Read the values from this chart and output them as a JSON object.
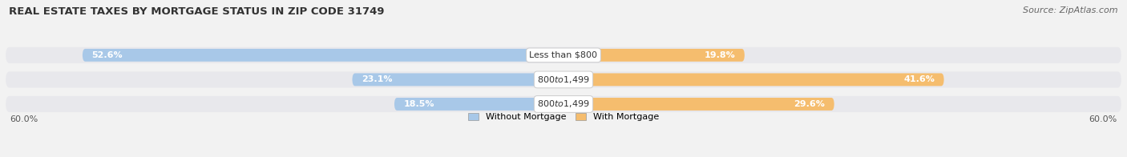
{
  "title": "REAL ESTATE TAXES BY MORTGAGE STATUS IN ZIP CODE 31749",
  "source": "Source: ZipAtlas.com",
  "rows": [
    {
      "label": "Less than $800",
      "without_mortgage": 52.6,
      "with_mortgage": 19.8
    },
    {
      "label": "$800 to $1,499",
      "without_mortgage": 23.1,
      "with_mortgage": 41.6
    },
    {
      "label": "$800 to $1,499",
      "without_mortgage": 18.5,
      "with_mortgage": 29.6
    }
  ],
  "x_max": 60.0,
  "color_without": "#a8c8e8",
  "color_with": "#f5bd6e",
  "row_bg_color": "#e8e8ec",
  "axis_label_left": "60.0%",
  "axis_label_right": "60.0%",
  "legend_without": "Without Mortgage",
  "legend_with": "With Mortgage",
  "bg_color": "#f2f2f2",
  "title_fontsize": 9.5,
  "source_fontsize": 8,
  "label_fontsize": 8,
  "value_fontsize": 8
}
